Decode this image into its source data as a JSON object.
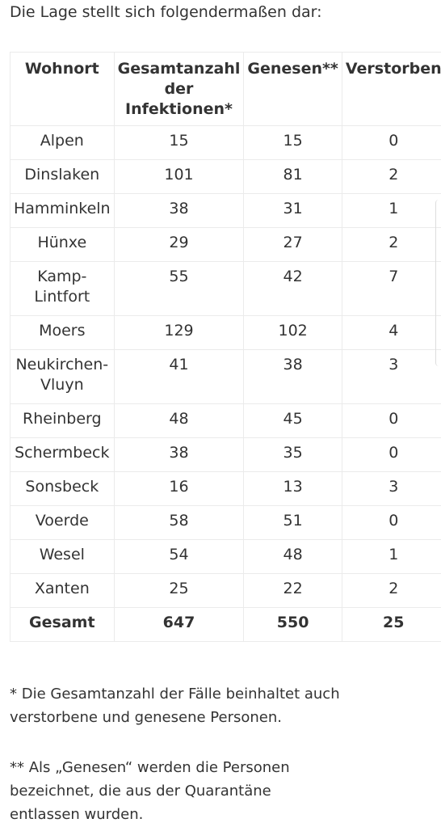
{
  "intro": "Die Lage stellt sich folgendermaßen dar:",
  "table": {
    "headers": [
      "Wohnort",
      "Gesamtanzahl der Infektionen*",
      "Genesen**",
      "Verstorben"
    ],
    "rows": [
      [
        "Alpen",
        "15",
        "15",
        "0"
      ],
      [
        "Dinslaken",
        "101",
        "81",
        "2"
      ],
      [
        "Hamminkeln",
        "38",
        "31",
        "1"
      ],
      [
        "Hünxe",
        "29",
        "27",
        "2"
      ],
      [
        "Kamp-Lintfort",
        "55",
        "42",
        "7"
      ],
      [
        "Moers",
        "129",
        "102",
        "4"
      ],
      [
        "Neukirchen-Vluyn",
        "41",
        "38",
        "3"
      ],
      [
        "Rheinberg",
        "48",
        "45",
        "0"
      ],
      [
        "Schermbeck",
        "38",
        "35",
        "0"
      ],
      [
        "Sonsbeck",
        "16",
        "13",
        "3"
      ],
      [
        "Voerde",
        "58",
        "51",
        "0"
      ],
      [
        "Wesel",
        "54",
        "48",
        "1"
      ],
      [
        "Xanten",
        "25",
        "22",
        "2"
      ]
    ],
    "total": [
      "Gesamt",
      "647",
      "550",
      "25"
    ]
  },
  "notes": [
    "* Die Gesamtanzahl der Fälle beinhaltet auch verstorbene und genesene Personen.",
    "** Als „Genesen“ werden die Personen bezeichnet, die aus der Quarantäne entlassen wurden."
  ]
}
